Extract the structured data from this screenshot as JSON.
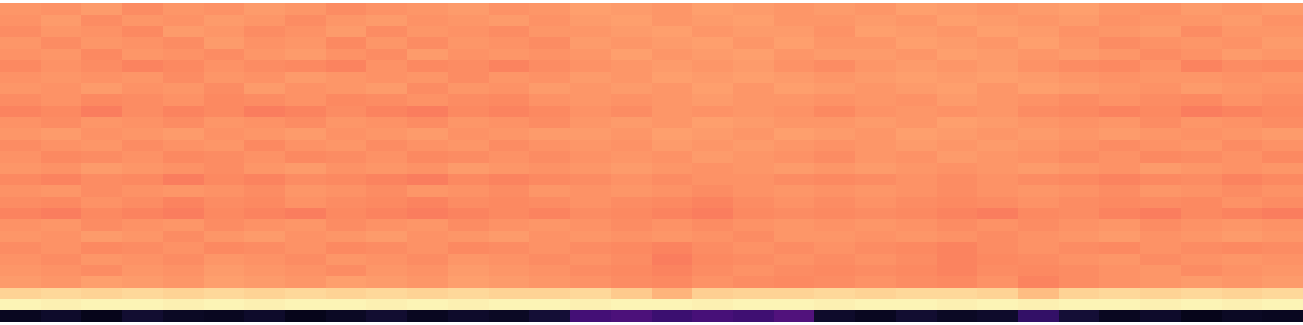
{
  "chart_data": {
    "type": "heatmap",
    "color": "magma",
    "zlim": [
      0,
      100
    ],
    "tick_labels": false,
    "grid": false,
    "cells": [
      [
        78,
        77,
        79,
        76,
        78,
        77,
        79,
        78,
        76,
        77,
        78,
        79,
        77,
        78,
        80,
        79,
        78,
        80,
        79,
        78,
        79,
        78,
        80,
        79,
        78,
        79,
        80,
        78,
        77,
        79,
        78,
        79
      ],
      [
        77,
        79,
        76,
        78,
        77,
        79,
        78,
        76,
        78,
        79,
        77,
        78,
        79,
        77,
        79,
        80,
        78,
        79,
        80,
        78,
        78,
        79,
        78,
        80,
        79,
        78,
        79,
        77,
        78,
        78,
        79,
        77
      ],
      [
        76,
        78,
        77,
        75,
        79,
        78,
        76,
        77,
        79,
        76,
        78,
        77,
        76,
        78,
        78,
        79,
        80,
        78,
        79,
        79,
        77,
        80,
        79,
        78,
        80,
        79,
        77,
        78,
        79,
        76,
        78,
        78
      ],
      [
        78,
        76,
        78,
        77,
        76,
        79,
        77,
        78,
        75,
        78,
        76,
        78,
        77,
        76,
        79,
        78,
        79,
        80,
        78,
        80,
        78,
        78,
        80,
        79,
        78,
        80,
        78,
        76,
        77,
        78,
        77,
        79
      ],
      [
        77,
        78,
        75,
        78,
        77,
        76,
        78,
        79,
        77,
        76,
        79,
        77,
        78,
        77,
        78,
        80,
        78,
        79,
        80,
        78,
        79,
        79,
        78,
        80,
        79,
        78,
        79,
        78,
        76,
        77,
        79,
        78
      ],
      [
        75,
        77,
        76,
        74,
        75,
        77,
        76,
        75,
        74,
        77,
        75,
        76,
        74,
        76,
        77,
        78,
        79,
        78,
        79,
        77,
        76,
        78,
        79,
        78,
        79,
        77,
        76,
        75,
        77,
        74,
        76,
        75
      ],
      [
        77,
        78,
        77,
        78,
        76,
        78,
        77,
        79,
        78,
        77,
        78,
        76,
        78,
        77,
        79,
        78,
        80,
        79,
        80,
        79,
        78,
        79,
        80,
        79,
        80,
        79,
        78,
        77,
        78,
        78,
        77,
        78
      ],
      [
        78,
        77,
        79,
        77,
        78,
        76,
        79,
        77,
        78,
        79,
        76,
        78,
        77,
        79,
        78,
        79,
        78,
        80,
        78,
        80,
        79,
        78,
        79,
        80,
        78,
        80,
        79,
        78,
        77,
        79,
        78,
        77
      ],
      [
        76,
        77,
        75,
        76,
        77,
        75,
        76,
        77,
        75,
        76,
        77,
        76,
        75,
        77,
        78,
        77,
        78,
        79,
        78,
        78,
        77,
        78,
        77,
        79,
        78,
        77,
        76,
        77,
        76,
        75,
        77,
        76
      ],
      [
        74,
        75,
        73,
        76,
        74,
        75,
        73,
        74,
        76,
        74,
        73,
        75,
        74,
        75,
        77,
        76,
        78,
        77,
        78,
        77,
        75,
        77,
        78,
        77,
        78,
        76,
        75,
        74,
        75,
        73,
        74,
        75
      ],
      [
        77,
        76,
        78,
        77,
        76,
        78,
        77,
        76,
        78,
        77,
        76,
        78,
        77,
        76,
        78,
        79,
        78,
        80,
        79,
        78,
        78,
        79,
        78,
        80,
        79,
        78,
        77,
        78,
        76,
        78,
        77,
        76
      ],
      [
        78,
        79,
        77,
        78,
        79,
        77,
        78,
        79,
        77,
        78,
        79,
        77,
        78,
        79,
        79,
        78,
        80,
        79,
        78,
        80,
        79,
        78,
        80,
        79,
        78,
        79,
        78,
        79,
        78,
        77,
        78,
        79
      ],
      [
        76,
        77,
        78,
        76,
        77,
        78,
        75,
        77,
        78,
        76,
        77,
        78,
        76,
        77,
        78,
        77,
        79,
        78,
        79,
        78,
        77,
        78,
        79,
        78,
        79,
        78,
        77,
        76,
        77,
        78,
        76,
        77
      ],
      [
        77,
        75,
        76,
        77,
        75,
        76,
        77,
        75,
        76,
        77,
        75,
        76,
        77,
        76,
        77,
        78,
        77,
        79,
        78,
        77,
        76,
        78,
        77,
        79,
        78,
        77,
        76,
        77,
        75,
        76,
        77,
        75
      ],
      [
        78,
        77,
        79,
        78,
        77,
        76,
        78,
        79,
        77,
        78,
        77,
        79,
        78,
        77,
        78,
        79,
        78,
        77,
        78,
        79,
        78,
        79,
        78,
        77,
        78,
        79,
        78,
        77,
        79,
        78,
        77,
        78
      ],
      [
        75,
        74,
        76,
        75,
        73,
        75,
        74,
        76,
        75,
        74,
        73,
        75,
        74,
        75,
        76,
        77,
        76,
        77,
        77,
        76,
        75,
        76,
        77,
        76,
        77,
        76,
        75,
        74,
        75,
        76,
        74,
        75
      ],
      [
        77,
        78,
        76,
        77,
        78,
        77,
        76,
        78,
        77,
        76,
        78,
        77,
        76,
        78,
        77,
        78,
        77,
        76,
        77,
        78,
        77,
        78,
        77,
        76,
        77,
        78,
        77,
        76,
        78,
        77,
        76,
        77
      ],
      [
        76,
        75,
        77,
        76,
        74,
        76,
        75,
        77,
        76,
        75,
        74,
        76,
        75,
        76,
        77,
        76,
        75,
        74,
        76,
        77,
        76,
        77,
        76,
        75,
        76,
        77,
        76,
        75,
        76,
        75,
        77,
        76
      ],
      [
        74,
        73,
        75,
        74,
        73,
        75,
        74,
        73,
        75,
        74,
        73,
        74,
        75,
        74,
        76,
        75,
        74,
        73,
        75,
        76,
        75,
        76,
        75,
        74,
        73,
        75,
        76,
        74,
        73,
        75,
        74,
        73
      ],
      [
        77,
        78,
        76,
        77,
        78,
        76,
        77,
        78,
        76,
        77,
        78,
        76,
        77,
        78,
        77,
        76,
        77,
        76,
        77,
        78,
        77,
        78,
        77,
        76,
        77,
        76,
        77,
        78,
        76,
        77,
        78,
        77
      ],
      [
        78,
        77,
        79,
        78,
        76,
        78,
        79,
        77,
        78,
        79,
        77,
        78,
        79,
        77,
        78,
        77,
        78,
        77,
        76,
        78,
        78,
        77,
        78,
        77,
        76,
        77,
        78,
        79,
        77,
        78,
        79,
        78
      ],
      [
        76,
        77,
        75,
        76,
        77,
        75,
        76,
        77,
        75,
        76,
        77,
        75,
        76,
        77,
        76,
        75,
        74,
        76,
        77,
        76,
        77,
        76,
        75,
        74,
        76,
        77,
        76,
        75,
        77,
        76,
        75,
        76
      ],
      [
        77,
        76,
        78,
        77,
        76,
        78,
        77,
        76,
        78,
        77,
        76,
        78,
        77,
        76,
        77,
        76,
        73,
        75,
        76,
        77,
        76,
        77,
        76,
        74,
        75,
        76,
        77,
        78,
        76,
        77,
        78,
        77
      ],
      [
        78,
        77,
        76,
        78,
        77,
        79,
        78,
        77,
        76,
        78,
        77,
        79,
        78,
        77,
        76,
        75,
        74,
        76,
        77,
        76,
        75,
        76,
        75,
        74,
        76,
        75,
        76,
        77,
        78,
        76,
        77,
        78
      ],
      [
        79,
        78,
        80,
        79,
        78,
        80,
        79,
        78,
        80,
        79,
        78,
        80,
        79,
        78,
        77,
        76,
        75,
        77,
        76,
        75,
        76,
        77,
        76,
        75,
        77,
        74,
        76,
        77,
        78,
        79,
        78,
        79
      ],
      [
        91,
        92,
        91,
        92,
        91,
        92,
        91,
        92,
        91,
        92,
        91,
        92,
        91,
        91,
        92,
        89,
        84,
        90,
        91,
        91,
        92,
        91,
        92,
        92,
        91,
        86,
        91,
        92,
        91,
        92,
        91,
        92
      ],
      [
        98,
        97,
        98,
        98,
        97,
        98,
        97,
        98,
        98,
        97,
        98,
        97,
        98,
        98,
        97,
        98,
        98,
        97,
        98,
        98,
        97,
        98,
        98,
        97,
        98,
        97,
        98,
        98,
        97,
        98,
        97,
        98
      ],
      [
        6,
        8,
        5,
        9,
        7,
        6,
        8,
        5,
        7,
        9,
        6,
        8,
        7,
        10,
        22,
        24,
        20,
        23,
        21,
        25,
        8,
        6,
        9,
        7,
        8,
        18,
        10,
        6,
        8,
        5,
        7,
        6
      ]
    ]
  }
}
